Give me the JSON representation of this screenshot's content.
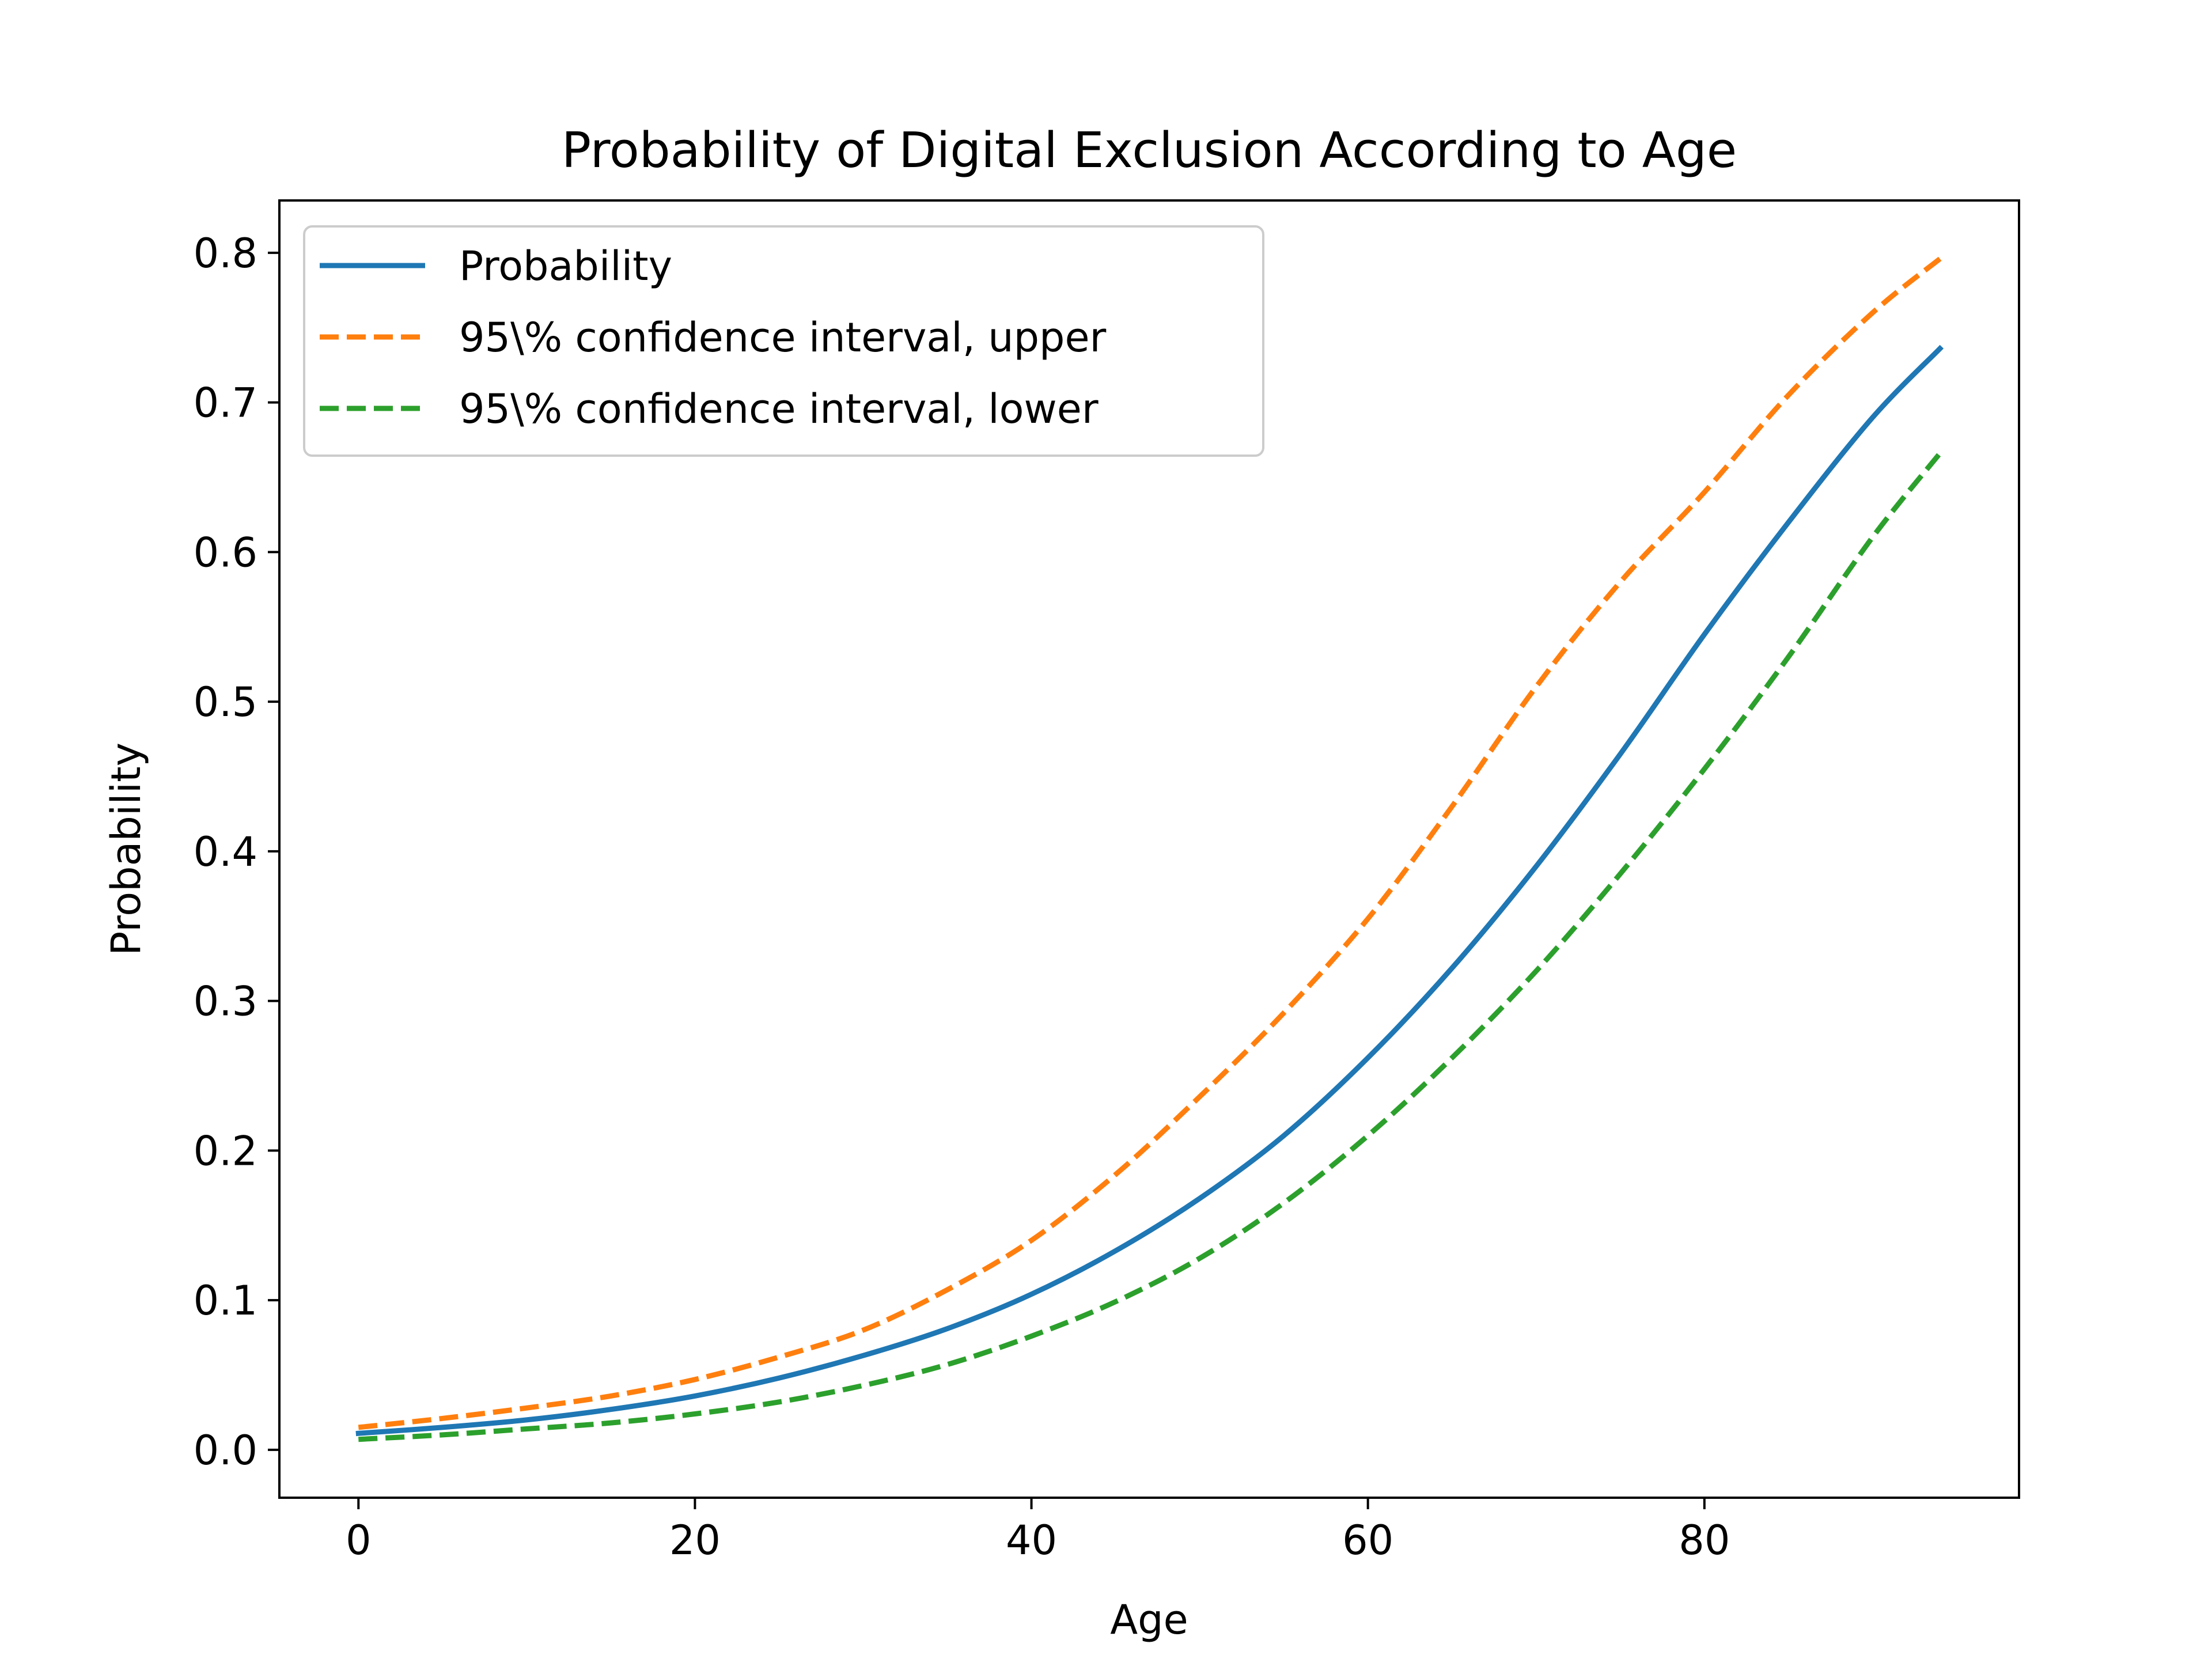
{
  "chart_data": {
    "type": "line",
    "title": "Probability of Digital Exclusion According to Age",
    "xlabel": "Age",
    "ylabel": "Probability",
    "xlim": [
      -4.7,
      98.7
    ],
    "ylim": [
      -0.032,
      0.835
    ],
    "xticks": [
      0,
      20,
      40,
      60,
      80
    ],
    "yticks": [
      0.0,
      0.1,
      0.2,
      0.3,
      0.4,
      0.5,
      0.6,
      0.7,
      0.8
    ],
    "grid": false,
    "legend_position": "upper-left",
    "x": [
      0,
      5,
      10,
      15,
      20,
      25,
      30,
      35,
      40,
      45,
      50,
      55,
      60,
      65,
      70,
      75,
      80,
      85,
      90,
      94
    ],
    "series": [
      {
        "name": "Probability",
        "style": "solid",
        "color": "#1f77b4",
        "values": [
          0.011,
          0.015,
          0.02,
          0.027,
          0.036,
          0.048,
          0.063,
          0.081,
          0.104,
          0.133,
          0.168,
          0.21,
          0.262,
          0.322,
          0.39,
          0.465,
          0.545,
          0.62,
          0.69,
          0.736
        ]
      },
      {
        "name": "95\\% confidence interval, upper",
        "style": "dashed",
        "color": "#ff7f0e",
        "values": [
          0.015,
          0.021,
          0.028,
          0.036,
          0.047,
          0.062,
          0.08,
          0.107,
          0.14,
          0.184,
          0.236,
          0.292,
          0.355,
          0.43,
          0.51,
          0.58,
          0.64,
          0.705,
          0.76,
          0.796
        ]
      },
      {
        "name": "95\\% confidence interval, lower",
        "style": "dashed",
        "color": "#2ca02c",
        "values": [
          0.007,
          0.01,
          0.014,
          0.018,
          0.024,
          0.032,
          0.043,
          0.057,
          0.076,
          0.099,
          0.128,
          0.165,
          0.21,
          0.262,
          0.32,
          0.385,
          0.455,
          0.53,
          0.61,
          0.666
        ]
      }
    ]
  }
}
